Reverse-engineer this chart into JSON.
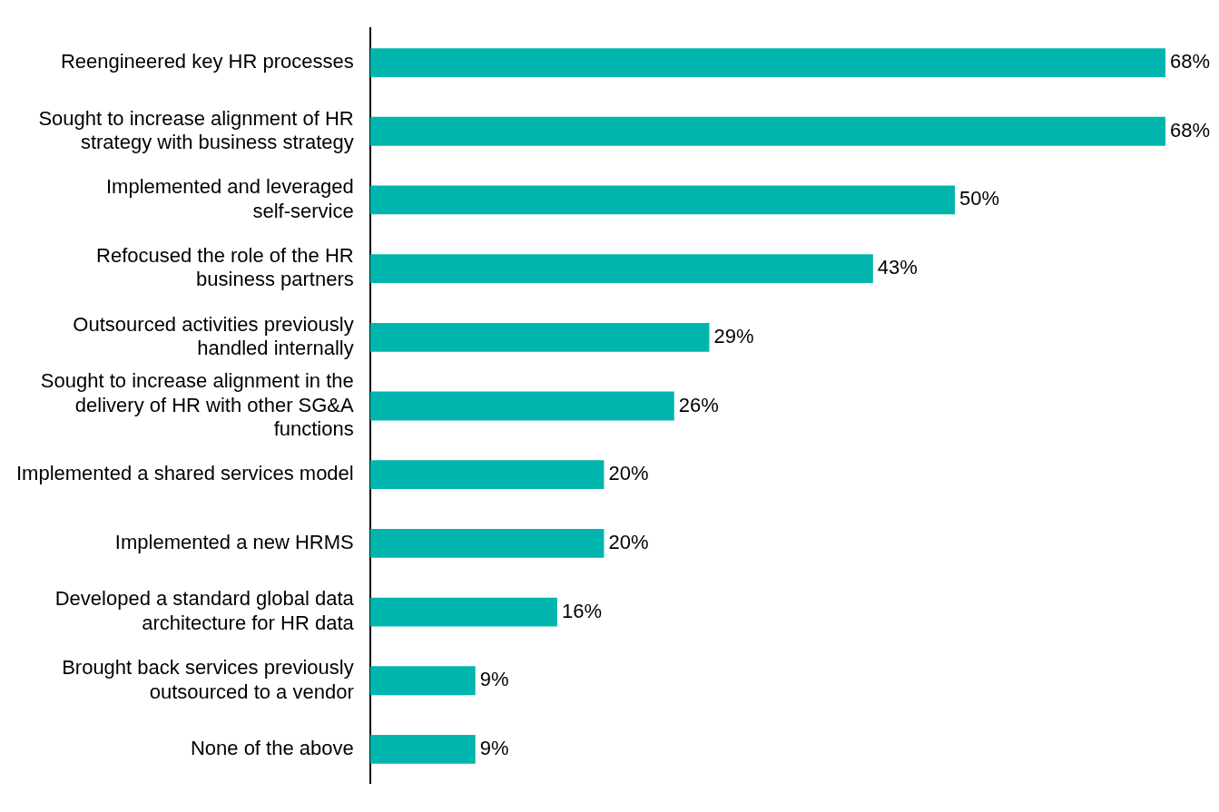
{
  "chart_data": {
    "type": "bar",
    "orientation": "horizontal",
    "color": "#00b5ad",
    "categories": [
      "Reengineered key HR processes",
      "Sought to increase alignment of HR strategy with business strategy",
      "Implemented and leveraged self-service",
      "Refocused the role of the HR business partners",
      "Outsourced activities previously handled internally",
      "Sought to increase alignment in the delivery of HR with other SG&A functions",
      "Implemented a shared services model",
      "Implemented a new HRMS",
      "Developed a standard global data architecture for HR data",
      "Brought back services previously outsourced to a vendor",
      "None of the above"
    ],
    "values": [
      68,
      68,
      50,
      43,
      29,
      26,
      20,
      20,
      16,
      9,
      9
    ],
    "value_labels": [
      "68%",
      "68%",
      "50%",
      "43%",
      "29%",
      "26%",
      "20%",
      "20%",
      "16%",
      "9%",
      "9%"
    ]
  }
}
